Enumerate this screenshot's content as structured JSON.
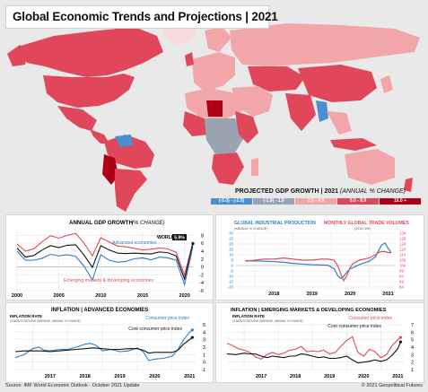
{
  "header": {
    "title": "Global Economic Trends and Projections | 2021"
  },
  "map_legend": {
    "title": "PROJECTED GDP GROWTH | 2021",
    "title_note": "(ANNUAL % CHANGE)",
    "bins": [
      {
        "label": "(-5.0) - (-2.0)",
        "color": "#4a8fd0"
      },
      {
        "label": "(-1.9) - 1.9",
        "color": "#9aa3b2"
      },
      {
        "label": "2.0 - 4.9",
        "color": "#f2a6aa"
      },
      {
        "label": "5.0 - 9.9",
        "color": "#e0475a"
      },
      {
        "label": "10.0 +",
        "color": "#b00018"
      }
    ]
  },
  "colors": {
    "blue": "#2a7fc9",
    "red": "#e04a58",
    "black": "#111111"
  },
  "chart_data": [
    {
      "type": "line",
      "title": "ANNUAL GDP GROWTH",
      "title_note": "(% CHANGE)",
      "x": [
        2000,
        2001,
        2002,
        2003,
        2004,
        2005,
        2006,
        2007,
        2008,
        2009,
        2010,
        2011,
        2012,
        2013,
        2014,
        2015,
        2016,
        2017,
        2018,
        2019,
        2020,
        2021
      ],
      "x_ticks": [
        "2000",
        "2005",
        "2010",
        "2015",
        "2020"
      ],
      "y_ticks": [
        "8",
        "6",
        "4",
        "2",
        "0",
        "-2",
        "-4",
        "-6"
      ],
      "ylim": [
        -6,
        9
      ],
      "series": [
        {
          "name": "Emerging markets & developing economies",
          "color": "#e04a58",
          "values": [
            5.8,
            4.0,
            4.6,
            6.4,
            7.9,
            7.3,
            8.0,
            8.5,
            6.0,
            2.8,
            7.4,
            6.3,
            5.3,
            5.1,
            4.7,
            4.3,
            4.5,
            4.8,
            4.6,
            3.7,
            -2.1,
            6.4
          ]
        },
        {
          "name": "WORLD",
          "color": "#111111",
          "values": [
            4.8,
            2.5,
            2.9,
            4.3,
            5.4,
            4.9,
            5.5,
            5.6,
            3.0,
            -0.1,
            5.4,
            4.3,
            3.5,
            3.4,
            3.5,
            3.4,
            3.3,
            3.8,
            3.6,
            2.8,
            -3.1,
            5.9
          ],
          "label": "WORLD",
          "label_value": "5.9%"
        },
        {
          "name": "Advanced economies",
          "color": "#2a7fc9",
          "values": [
            4.0,
            1.7,
            1.7,
            2.2,
            3.2,
            2.8,
            3.1,
            2.7,
            0.2,
            -3.3,
            3.1,
            1.7,
            1.2,
            1.4,
            2.1,
            2.3,
            1.8,
            2.5,
            2.3,
            1.7,
            -4.5,
            5.2
          ]
        }
      ]
    },
    {
      "type": "line",
      "title": "GLOBAL INDUSTRIAL PRODUCTION",
      "subtitle": "(ANNUAL % CHANGE)",
      "title_right": "MONTHLY GLOBAL TRADE VOLUMES",
      "subtitle_right": "(2010=100)",
      "x_ticks": [
        "2018",
        "2019",
        "2020",
        "2021"
      ],
      "y_ticks_left": [
        "30",
        "25",
        "20",
        "15",
        "10",
        "5",
        "0",
        "-5",
        "-10",
        "-15",
        "-20"
      ],
      "y_ticks_right": [
        "134",
        "129",
        "124",
        "119",
        "114",
        "109",
        "104",
        "99",
        "94",
        "89",
        "84"
      ],
      "ylim": [
        -20,
        30
      ],
      "ylim_right": [
        84,
        134
      ],
      "series": [
        {
          "name": "GLOBAL INDUSTRIAL PRODUCTION",
          "color": "#2a7fc9",
          "axis": "left",
          "x": [
            2017.75,
            2018.0,
            2018.25,
            2018.5,
            2018.75,
            2019.0,
            2019.25,
            2019.5,
            2019.75,
            2019.92,
            2020.08,
            2020.17,
            2020.25,
            2020.33,
            2020.42,
            2020.5,
            2020.58,
            2020.75,
            2021.0,
            2021.17,
            2021.25,
            2021.33,
            2021.42,
            2021.5,
            2021.58
          ],
          "values": [
            4.5,
            4.2,
            4.0,
            3.6,
            3.0,
            2.0,
            1.3,
            0.8,
            0.5,
            0.2,
            -3,
            -9,
            -12,
            -10,
            -6,
            -3,
            -2,
            1,
            4,
            8,
            14,
            19,
            21,
            16,
            12
          ]
        },
        {
          "name": "MONTHLY GLOBAL TRADE VOLUMES",
          "color": "#e04a58",
          "axis": "right",
          "x": [
            2017.75,
            2018.0,
            2018.25,
            2018.5,
            2018.75,
            2019.0,
            2019.25,
            2019.5,
            2019.75,
            2019.92,
            2020.08,
            2020.17,
            2020.25,
            2020.33,
            2020.42,
            2020.5,
            2020.58,
            2020.75,
            2021.0,
            2021.17,
            2021.25,
            2021.33,
            2021.42,
            2021.5,
            2021.58
          ],
          "values": [
            108,
            109,
            110,
            110,
            111,
            110,
            109,
            109,
            110,
            110,
            109,
            104,
            97,
            90,
            95,
            102,
            106,
            109,
            111,
            114,
            116,
            117,
            117,
            116,
            116
          ]
        }
      ]
    },
    {
      "type": "line",
      "title": "INFLATION | ADVANCED ECONOMIES",
      "subtitle": "INFLATION RATE",
      "subtitle_note": "(3-MONTH MOVING AVERAGE, ANNUAL % CHANGE)",
      "x_ticks": [
        "2017",
        "2018",
        "2019",
        "2020",
        "2021"
      ],
      "y_ticks": [
        "5",
        "4",
        "3",
        "2",
        "1",
        "0",
        "-1"
      ],
      "ylim": [
        -1,
        5
      ],
      "series": [
        {
          "name": "Consumer price index",
          "color": "#2a7fc9",
          "x": [
            2016.5,
            2016.75,
            2017.0,
            2017.17,
            2017.33,
            2017.5,
            2017.75,
            2018.0,
            2018.25,
            2018.5,
            2018.67,
            2018.83,
            2019.0,
            2019.25,
            2019.5,
            2019.75,
            2020.0,
            2020.17,
            2020.33,
            2020.5,
            2020.75,
            2021.0,
            2021.17,
            2021.33,
            2021.5,
            2021.58
          ],
          "values": [
            0.6,
            1.0,
            1.8,
            2.0,
            1.6,
            1.5,
            1.7,
            1.7,
            2.0,
            2.4,
            2.5,
            2.2,
            1.5,
            1.7,
            1.4,
            1.5,
            1.9,
            1.4,
            0.2,
            0.4,
            0.5,
            0.8,
            1.7,
            3.0,
            4.0,
            4.3
          ]
        },
        {
          "name": "Core consumer price index",
          "color": "#111111",
          "x": [
            2016.5,
            2016.75,
            2017.0,
            2017.25,
            2017.5,
            2017.75,
            2018.0,
            2018.25,
            2018.5,
            2018.75,
            2019.0,
            2019.25,
            2019.5,
            2019.75,
            2020.0,
            2020.17,
            2020.33,
            2020.5,
            2020.75,
            2021.0,
            2021.17,
            2021.33,
            2021.5,
            2021.58
          ],
          "values": [
            1.4,
            1.5,
            1.5,
            1.5,
            1.4,
            1.5,
            1.6,
            1.7,
            1.8,
            1.9,
            1.8,
            1.7,
            1.7,
            1.8,
            1.8,
            1.6,
            1.2,
            1.3,
            1.3,
            1.3,
            1.6,
            2.4,
            3.0,
            3.3
          ]
        }
      ]
    },
    {
      "type": "line",
      "title": "INFLATION | EMERGING MARKETS & DEVELOPING ECONOMIES",
      "subtitle": "INFLATION RATE",
      "subtitle_note": "(3-MONTH MOVING AVERAGE, ANNUAL % CHANGE)",
      "x_ticks": [
        "2017",
        "2018",
        "2019",
        "2020",
        "2021"
      ],
      "y_ticks": [
        "7",
        "6",
        "5",
        "4",
        "3",
        "2",
        "1"
      ],
      "ylim": [
        1,
        7
      ],
      "series": [
        {
          "name": "Consumer price index",
          "color": "#e04a58",
          "x": [
            2016.5,
            2016.67,
            2016.83,
            2017.0,
            2017.17,
            2017.33,
            2017.5,
            2017.67,
            2017.83,
            2018.0,
            2018.17,
            2018.33,
            2018.5,
            2018.67,
            2018.83,
            2019.0,
            2019.17,
            2019.33,
            2019.5,
            2019.67,
            2019.83,
            2020.0,
            2020.17,
            2020.33,
            2020.5,
            2020.67,
            2020.83,
            2021.0,
            2021.17,
            2021.33,
            2021.5,
            2021.58
          ],
          "values": [
            4.5,
            4.2,
            3.8,
            3.6,
            3.3,
            2.7,
            2.4,
            3.0,
            3.3,
            3.0,
            3.2,
            3.6,
            3.7,
            4.1,
            3.4,
            3.5,
            3.4,
            3.6,
            3.1,
            3.3,
            4.1,
            4.9,
            5.4,
            3.3,
            2.8,
            3.7,
            3.4,
            2.6,
            3.0,
            4.2,
            5.0,
            5.3
          ]
        },
        {
          "name": "Core consumer price index",
          "color": "#111111",
          "x": [
            2016.5,
            2016.75,
            2017.0,
            2017.17,
            2017.33,
            2017.5,
            2017.67,
            2017.83,
            2018.0,
            2018.17,
            2018.33,
            2018.5,
            2018.67,
            2018.83,
            2019.0,
            2019.17,
            2019.33,
            2019.5,
            2019.67,
            2019.83,
            2020.0,
            2020.17,
            2020.33,
            2020.5,
            2020.67,
            2020.83,
            2021.0,
            2021.17,
            2021.33,
            2021.5,
            2021.58
          ],
          "values": [
            3.1,
            3.0,
            3.2,
            3.1,
            3.1,
            2.8,
            2.6,
            2.8,
            2.7,
            2.6,
            2.8,
            2.8,
            3.1,
            3.0,
            2.8,
            2.6,
            2.7,
            2.5,
            2.5,
            2.6,
            2.8,
            2.3,
            1.9,
            2.0,
            2.1,
            2.3,
            2.1,
            2.3,
            2.9,
            3.8,
            4.7
          ]
        }
      ]
    }
  ],
  "footer": {
    "source": "Source: IMF World Economic Outlook - October 2021 Update",
    "copyright": "© 2021 Geopolitical Futures"
  }
}
